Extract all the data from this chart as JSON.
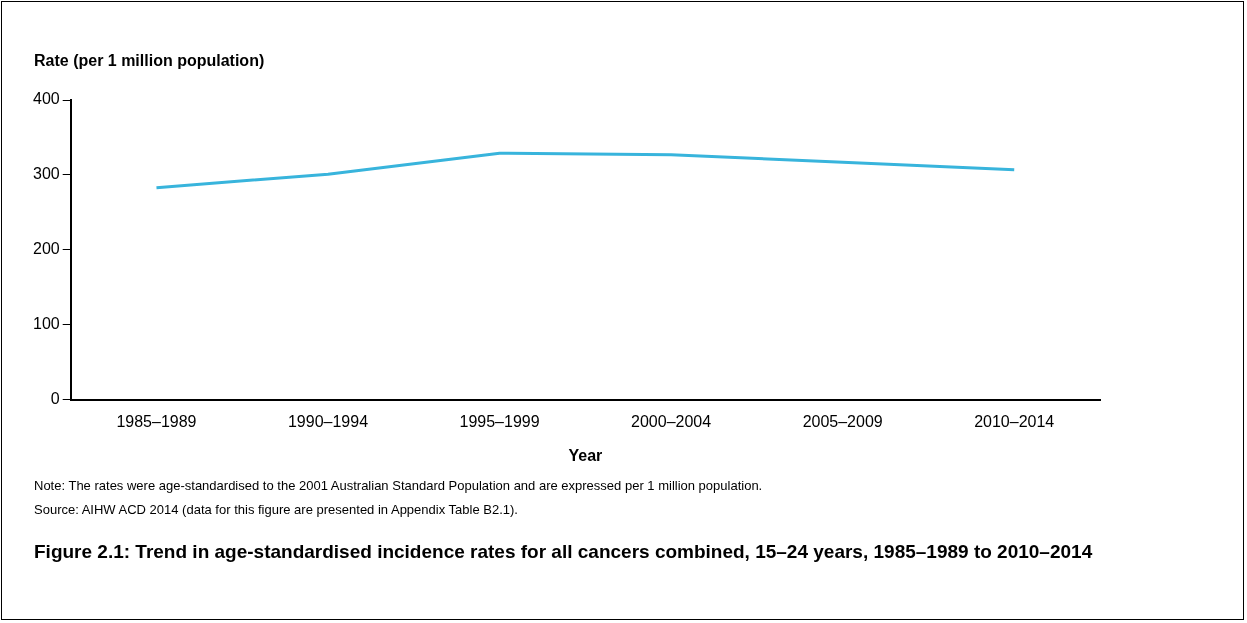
{
  "chart_data": {
    "type": "line",
    "title": "Figure 2.1: Trend in age-standardised incidence rates for all cancers combined, 15–24 years, 1985–1989 to 2010–2014",
    "xlabel": "Year",
    "ylabel": "Rate (per 1 million population)",
    "categories": [
      "1985–1989",
      "1990–1994",
      "1995–1999",
      "2000–2004",
      "2005–2009",
      "2010–2014"
    ],
    "series": [
      {
        "color": "#38b4dc",
        "values": [
          283,
          301,
          329,
          327,
          317,
          307
        ]
      }
    ],
    "ylim": [
      0,
      400
    ],
    "yticks": [
      0,
      100,
      200,
      300,
      400
    ],
    "grid": false,
    "legend": false,
    "marker": "none",
    "line_style": "solid",
    "annotations": [
      "Note: The rates were age-standardised to the 2001 Australian Standard Population and are expressed per 1 million population.",
      "Source: AIHW ACD 2014 (data for this figure are presented in Appendix Table B2.1)."
    ]
  }
}
